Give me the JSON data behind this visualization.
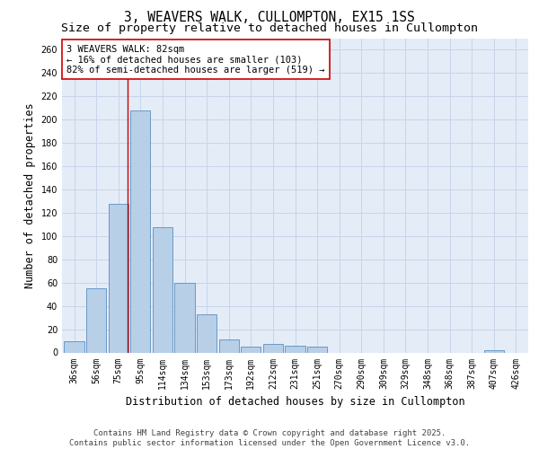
{
  "title_line1": "3, WEAVERS WALK, CULLOMPTON, EX15 1SS",
  "title_line2": "Size of property relative to detached houses in Cullompton",
  "xlabel": "Distribution of detached houses by size in Cullompton",
  "ylabel": "Number of detached properties",
  "categories": [
    "36sqm",
    "56sqm",
    "75sqm",
    "95sqm",
    "114sqm",
    "134sqm",
    "153sqm",
    "173sqm",
    "192sqm",
    "212sqm",
    "231sqm",
    "251sqm",
    "270sqm",
    "290sqm",
    "309sqm",
    "329sqm",
    "348sqm",
    "368sqm",
    "387sqm",
    "407sqm",
    "426sqm"
  ],
  "values": [
    10,
    55,
    128,
    208,
    108,
    60,
    33,
    11,
    5,
    7,
    6,
    5,
    0,
    0,
    0,
    0,
    0,
    0,
    0,
    2,
    0
  ],
  "bar_color": "#b8cfe8",
  "bar_edge_color": "#5a8fc0",
  "grid_color": "#c8d4e8",
  "background_color": "#e4ecf7",
  "vline_x_index": 2.42,
  "vline_color": "#cc0000",
  "annotation_text": "3 WEAVERS WALK: 82sqm\n← 16% of detached houses are smaller (103)\n82% of semi-detached houses are larger (519) →",
  "annotation_box_color": "#ffffff",
  "annotation_box_edge_color": "#cc0000",
  "ylim": [
    0,
    270
  ],
  "yticks": [
    0,
    20,
    40,
    60,
    80,
    100,
    120,
    140,
    160,
    180,
    200,
    220,
    240,
    260
  ],
  "footer_line1": "Contains HM Land Registry data © Crown copyright and database right 2025.",
  "footer_line2": "Contains public sector information licensed under the Open Government Licence v3.0.",
  "title_fontsize": 10.5,
  "subtitle_fontsize": 9.5,
  "axis_label_fontsize": 8.5,
  "tick_fontsize": 7,
  "annotation_fontsize": 7.5,
  "footer_fontsize": 6.5
}
